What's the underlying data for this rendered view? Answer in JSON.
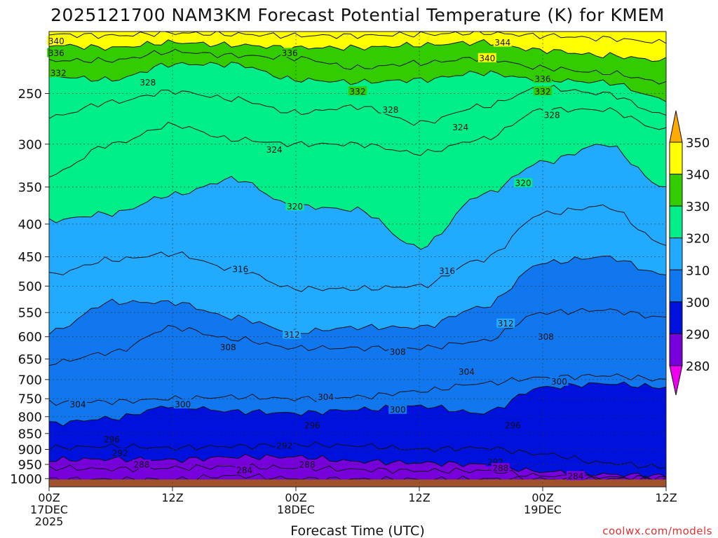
{
  "chart_data": {
    "type": "heatmap",
    "title": "2025121700 NAM3KM Forecast Potential Temperature (K) for KMEM",
    "xlabel": "Forecast Time (UTC)",
    "credit": "coolwx.com/models",
    "y_axis": {
      "scale": "log-pressure",
      "ylim": [
        1030,
        200
      ],
      "ticks": [
        250,
        300,
        350,
        400,
        450,
        500,
        550,
        600,
        650,
        700,
        750,
        800,
        850,
        900,
        950,
        1000
      ]
    },
    "x_axis": {
      "xlim": [
        0,
        60
      ],
      "ticks": [
        {
          "hour": 0,
          "line1": "00Z",
          "line2": "17DEC",
          "line3": "2025"
        },
        {
          "hour": 12,
          "line1": "12Z",
          "line2": "",
          "line3": ""
        },
        {
          "hour": 24,
          "line1": "00Z",
          "line2": "18DEC",
          "line3": ""
        },
        {
          "hour": 36,
          "line1": "12Z",
          "line2": "",
          "line3": ""
        },
        {
          "hour": 48,
          "line1": "00Z",
          "line2": "19DEC",
          "line3": ""
        },
        {
          "hour": 60,
          "line1": "12Z",
          "line2": "",
          "line3": ""
        }
      ]
    },
    "grid": true,
    "legend_position": "right",
    "colorbar": {
      "labels": [
        350,
        340,
        330,
        320,
        310,
        300,
        290,
        280
      ],
      "bands": [
        {
          "min": 340,
          "max": 350,
          "color": "#ffff00"
        },
        {
          "min": 330,
          "max": 340,
          "color": "#33cc00"
        },
        {
          "min": 320,
          "max": 330,
          "color": "#00ee88"
        },
        {
          "min": 310,
          "max": 320,
          "color": "#22aaff"
        },
        {
          "min": 300,
          "max": 310,
          "color": "#1177ee"
        },
        {
          "min": 290,
          "max": 300,
          "color": "#0011dd"
        },
        {
          "min": 280,
          "max": 290,
          "color": "#7700dd"
        }
      ],
      "over_color": "#ffaa00",
      "under_color": "#ee00ee"
    },
    "ground_color": "#a0522d",
    "levels": [
      284,
      288,
      292,
      296,
      300,
      304,
      308,
      312,
      316,
      320,
      324,
      328,
      332,
      336,
      340,
      344
    ],
    "profiles": {
      "hours": [
        0,
        6,
        12,
        18,
        24,
        30,
        36,
        42,
        48,
        54,
        60
      ],
      "pressure_by_level": {
        "284": [
          1002,
          1003,
          1003,
          990,
          1000,
          1002,
          1003,
          1001,
          1002,
          1000,
          1003
        ],
        "288": [
          962,
          966,
          962,
          958,
          962,
          968,
          972,
          972,
          990,
          995,
          998
        ],
        "292": [
          935,
          932,
          935,
          925,
          925,
          940,
          945,
          950,
          975,
          985,
          990
        ],
        "296": [
          895,
          890,
          895,
          890,
          885,
          888,
          900,
          895,
          915,
          945,
          960
        ],
        "300": [
          820,
          805,
          770,
          785,
          790,
          780,
          770,
          790,
          720,
          710,
          720
        ],
        "304": [
          760,
          758,
          750,
          745,
          750,
          745,
          730,
          710,
          695,
          690,
          700
        ],
        "308": [
          660,
          635,
          580,
          605,
          625,
          625,
          625,
          610,
          550,
          545,
          560
        ],
        "312": [
          590,
          530,
          530,
          560,
          590,
          580,
          580,
          540,
          460,
          450,
          480
        ],
        "316": [
          480,
          455,
          445,
          470,
          505,
          505,
          500,
          455,
          385,
          375,
          430
        ],
        "320": [
          395,
          385,
          360,
          340,
          375,
          380,
          435,
          360,
          320,
          300,
          350
        ],
        "324": [
          335,
          300,
          280,
          295,
          300,
          300,
          310,
          295,
          265,
          265,
          285
        ],
        "328": [
          272,
          258,
          248,
          255,
          268,
          262,
          278,
          262,
          245,
          250,
          270
        ],
        "332": [
          235,
          238,
          225,
          225,
          238,
          240,
          238,
          232,
          238,
          240,
          255
        ],
        "336": [
          222,
          222,
          215,
          218,
          220,
          228,
          224,
          220,
          228,
          232,
          240
        ],
        "340": [
          210,
          212,
          208,
          210,
          212,
          212,
          210,
          208,
          214,
          218,
          222
        ],
        "344": [
          202,
          203,
          201,
          202,
          203,
          203,
          202,
          201,
          203,
          205,
          208
        ]
      }
    },
    "contour_labels": [
      {
        "text": "340",
        "hour": 0.7,
        "pressure": 207
      },
      {
        "text": "336",
        "hour": 0.7,
        "pressure": 216
      },
      {
        "text": "332",
        "hour": 0.9,
        "pressure": 232
      },
      {
        "text": "328",
        "hour": 9.6,
        "pressure": 240
      },
      {
        "text": "336",
        "hour": 23.4,
        "pressure": 216
      },
      {
        "text": "332",
        "hour": 30.0,
        "pressure": 248
      },
      {
        "text": "328",
        "hour": 33.2,
        "pressure": 265
      },
      {
        "text": "344",
        "hour": 44.1,
        "pressure": 208
      },
      {
        "text": "340",
        "hour": 42.6,
        "pressure": 220
      },
      {
        "text": "336",
        "hour": 48.0,
        "pressure": 237
      },
      {
        "text": "332",
        "hour": 48.0,
        "pressure": 248
      },
      {
        "text": "328",
        "hour": 48.9,
        "pressure": 270
      },
      {
        "text": "324",
        "hour": 40.0,
        "pressure": 282
      },
      {
        "text": "324",
        "hour": 21.9,
        "pressure": 306
      },
      {
        "text": "320",
        "hour": 46.1,
        "pressure": 345
      },
      {
        "text": "320",
        "hour": 23.9,
        "pressure": 375
      },
      {
        "text": "316",
        "hour": 18.6,
        "pressure": 470
      },
      {
        "text": "316",
        "hour": 38.7,
        "pressure": 473
      },
      {
        "text": "312",
        "hour": 44.4,
        "pressure": 572
      },
      {
        "text": "312",
        "hour": 23.6,
        "pressure": 595
      },
      {
        "text": "308",
        "hour": 48.3,
        "pressure": 600
      },
      {
        "text": "308",
        "hour": 17.4,
        "pressure": 623
      },
      {
        "text": "308",
        "hour": 33.9,
        "pressure": 633
      },
      {
        "text": "304",
        "hour": 40.6,
        "pressure": 680
      },
      {
        "text": "300",
        "hour": 49.6,
        "pressure": 705
      },
      {
        "text": "304",
        "hour": 26.9,
        "pressure": 745
      },
      {
        "text": "304",
        "hour": 2.8,
        "pressure": 765
      },
      {
        "text": "300",
        "hour": 13.0,
        "pressure": 765
      },
      {
        "text": "300",
        "hour": 33.9,
        "pressure": 780
      },
      {
        "text": "296",
        "hour": 25.6,
        "pressure": 825
      },
      {
        "text": "296",
        "hour": 45.1,
        "pressure": 825
      },
      {
        "text": "296",
        "hour": 6.1,
        "pressure": 868
      },
      {
        "text": "292",
        "hour": 22.9,
        "pressure": 888
      },
      {
        "text": "292",
        "hour": 6.9,
        "pressure": 912
      },
      {
        "text": "292",
        "hour": 43.4,
        "pressure": 942
      },
      {
        "text": "288",
        "hour": 9.0,
        "pressure": 950
      },
      {
        "text": "288",
        "hour": 25.1,
        "pressure": 950
      },
      {
        "text": "288",
        "hour": 43.9,
        "pressure": 962
      },
      {
        "text": "284",
        "hour": 19.0,
        "pressure": 970
      },
      {
        "text": "284",
        "hour": 51.2,
        "pressure": 990
      }
    ]
  }
}
